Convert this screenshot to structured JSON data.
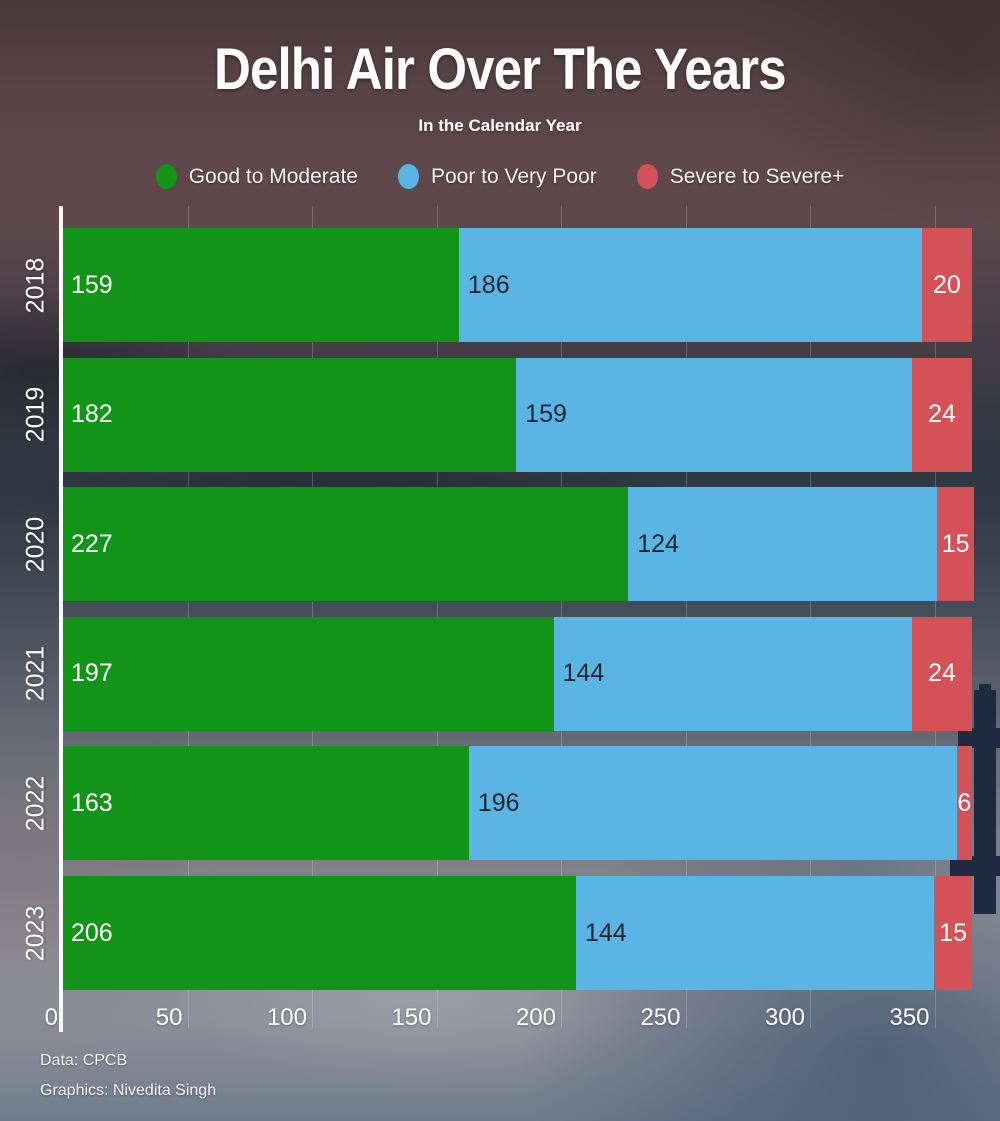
{
  "title": "Delhi Air Over The Years",
  "subtitle": "In the Calendar Year",
  "footer": {
    "line1": "Data: CPCB",
    "line2": "Graphics: Nivedita Singh"
  },
  "colors": {
    "good": "#119418",
    "poor": "#5bb5e4",
    "severe": "#d45257",
    "axis": "#ffffff",
    "text": "#ffffff",
    "tower_silhouette": "#1f2940"
  },
  "chart_data": {
    "type": "bar",
    "orientation": "horizontal",
    "stacked": true,
    "title": "Delhi Air Over The Years",
    "subtitle": "In the Calendar Year",
    "categories": [
      "2018",
      "2019",
      "2020",
      "2021",
      "2022",
      "2023"
    ],
    "series": [
      {
        "name": "Good to Moderate",
        "color": "#119418",
        "label_color": "#ffffff",
        "values": [
          159,
          182,
          227,
          197,
          163,
          206
        ]
      },
      {
        "name": "Poor to Very Poor",
        "color": "#5bb5e4",
        "label_color": "#1b2530",
        "values": [
          186,
          159,
          124,
          144,
          196,
          144
        ]
      },
      {
        "name": "Severe to Severe+",
        "color": "#d45257",
        "label_color": "#ffffff",
        "values": [
          20,
          24,
          15,
          24,
          6,
          15
        ]
      }
    ],
    "xlabel": "",
    "ylabel": "",
    "xticks": [
      0,
      50,
      100,
      150,
      200,
      250,
      300,
      350
    ],
    "xlim": [
      0,
      366
    ],
    "grid": true,
    "legend_position": "top",
    "value_labels": "inside"
  }
}
